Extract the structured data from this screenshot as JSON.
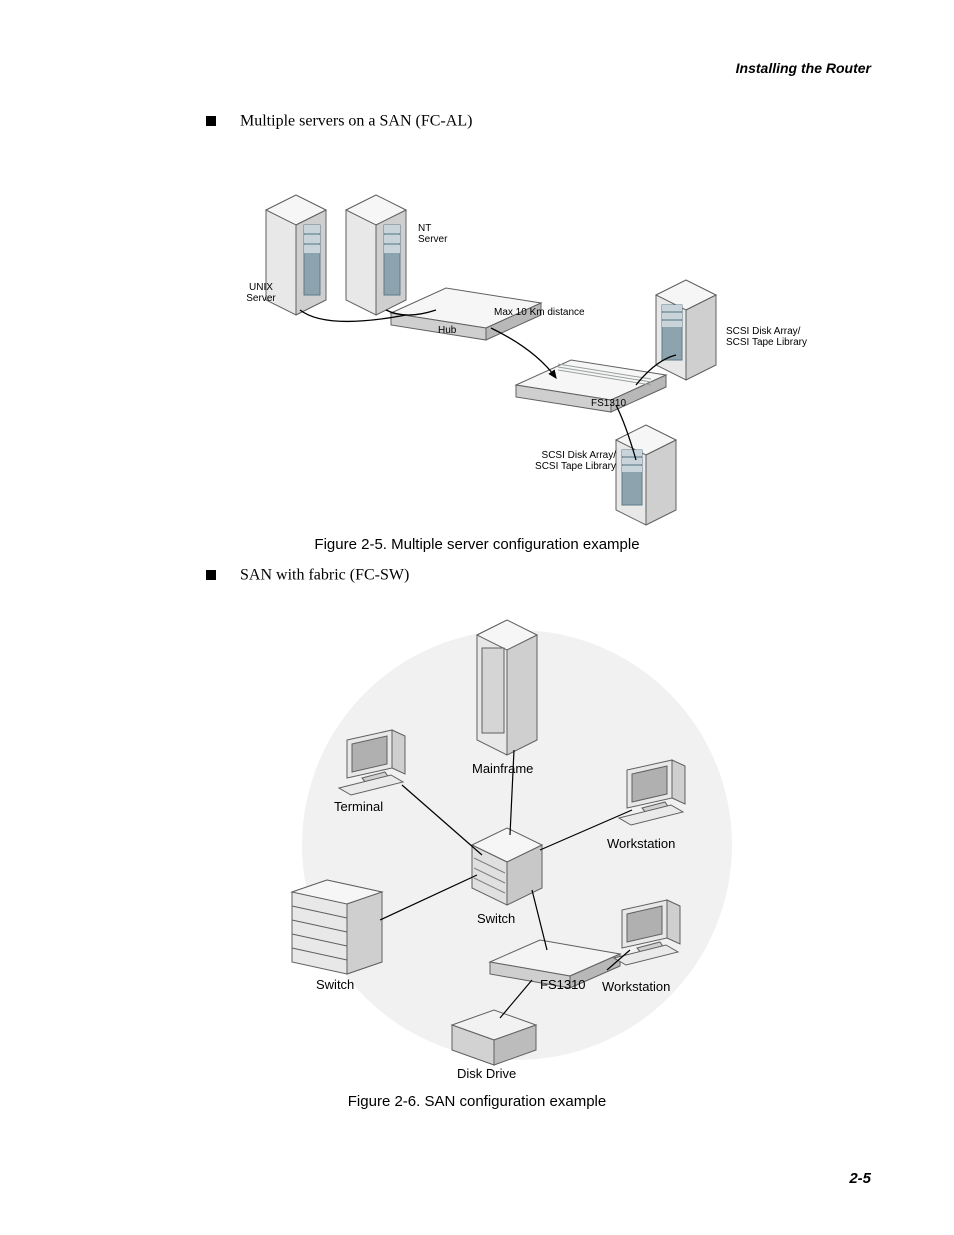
{
  "header": {
    "running": "Installing the Router"
  },
  "bullets": {
    "b1": "Multiple servers on a SAN (FC-AL)",
    "b2": "SAN with fabric (FC-SW)"
  },
  "captions": {
    "fig25": "Figure 2-5. Multiple server configuration example",
    "fig26": "Figure 2-6. SAN configuration example"
  },
  "page_number": "2-5",
  "fig25": {
    "labels": {
      "unix_server": "UNIX\nServer",
      "nt_server": "NT\nServer",
      "hub": "Hub",
      "max_dist": "Max 10 Km distance",
      "fs1310": "FS1310",
      "array1": "SCSI Disk Array/\nSCSI Tape Library",
      "array2": "SCSI Disk Array/\nSCSI Tape Library"
    },
    "colors": {
      "box_light": "#f3f3f3",
      "box_mid": "#d8d8d8",
      "box_dark": "#b8b8b8",
      "panel": "#8da4af",
      "stroke": "#606060",
      "line": "#000000"
    }
  },
  "fig26": {
    "labels": {
      "terminal": "Terminal",
      "mainframe": "Mainframe",
      "workstation1": "Workstation",
      "switch_label": "Switch",
      "switch_center": "Switch",
      "fs1310": "FS1310",
      "workstation2": "Workstation",
      "disk_drive": "Disk Drive"
    },
    "colors": {
      "circle_bg": "#f1f1f1",
      "box_light": "#f3f3f3",
      "box_mid": "#d8d8d8",
      "box_dark": "#b8b8b8",
      "panel": "#8da4af",
      "stroke": "#606060",
      "line": "#000000"
    }
  }
}
